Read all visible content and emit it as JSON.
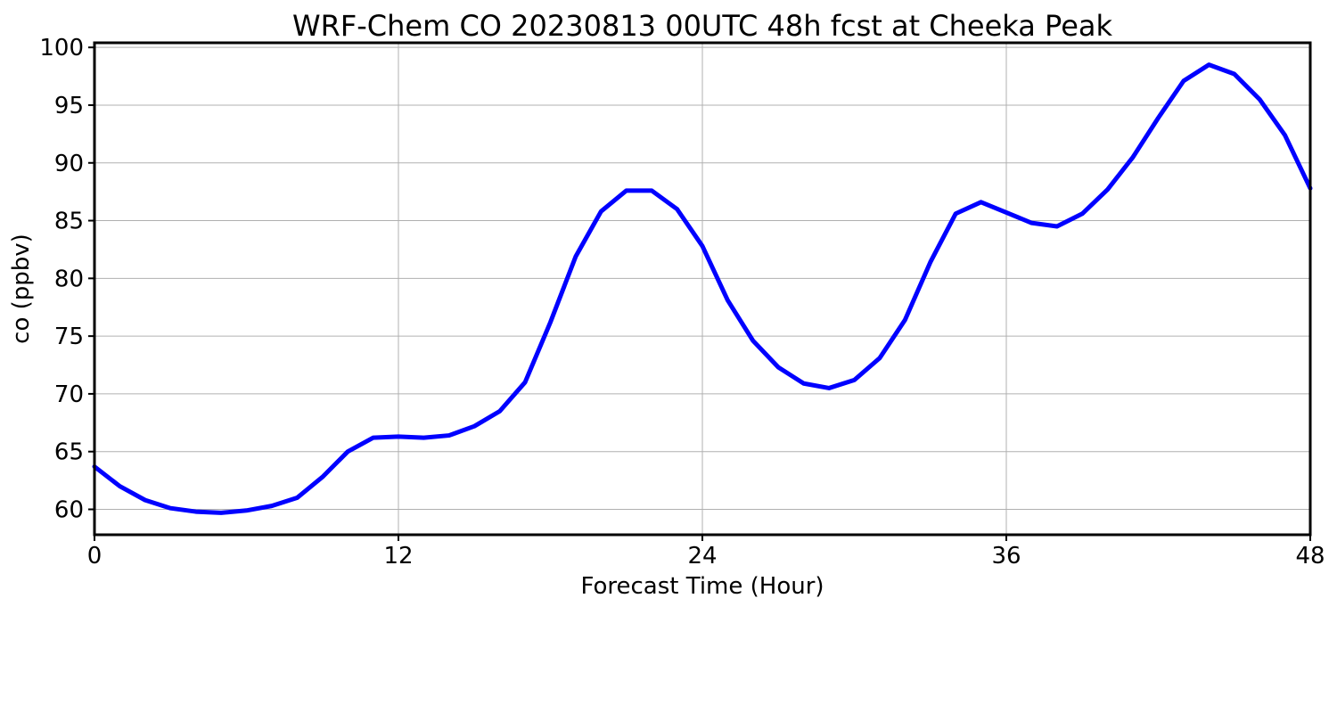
{
  "chart_data": {
    "type": "line",
    "title": "WRF-Chem CO  20230813 00UTC 48h fcst at Cheeka Peak",
    "xlabel": "Forecast Time (Hour)",
    "ylabel": "co  (ppbv)",
    "xlim": [
      0,
      48
    ],
    "ylim": [
      57.8,
      100.4
    ],
    "xticks": [
      0,
      12,
      24,
      36,
      48
    ],
    "yticks": [
      60,
      65,
      70,
      75,
      80,
      85,
      90,
      95,
      100
    ],
    "xtick_labels": [
      "0",
      "12",
      "24",
      "36",
      "48"
    ],
    "ytick_labels": [
      "60",
      "65",
      "70",
      "75",
      "80",
      "85",
      "90",
      "95",
      "100"
    ],
    "grid": true,
    "legend": "none",
    "line_color": "#0000ff",
    "x": [
      0,
      1,
      2,
      3,
      4,
      5,
      6,
      7,
      8,
      9,
      10,
      11,
      12,
      13,
      14,
      15,
      16,
      17,
      18,
      19,
      20,
      21,
      22,
      23,
      24,
      25,
      26,
      27,
      28,
      29,
      30,
      31,
      32,
      33,
      34,
      35,
      36,
      37,
      38,
      39,
      40,
      41,
      42,
      43,
      44,
      45,
      46,
      47,
      48
    ],
    "series": [
      {
        "values": [
          63.7,
          62.0,
          60.8,
          60.1,
          59.8,
          59.7,
          59.9,
          60.3,
          61.0,
          62.8,
          65.0,
          66.2,
          66.3,
          66.2,
          66.4,
          67.2,
          68.5,
          71.0,
          76.2,
          81.9,
          85.8,
          87.6,
          87.6,
          86.0,
          82.8,
          78.1,
          74.6,
          72.3,
          70.9,
          70.5,
          71.2,
          73.1,
          76.4,
          81.4,
          85.6,
          86.6,
          85.7,
          84.8,
          84.5,
          85.6,
          87.7,
          90.5,
          93.9,
          97.1,
          98.5,
          97.7,
          95.5,
          92.4,
          87.8
        ]
      }
    ]
  }
}
